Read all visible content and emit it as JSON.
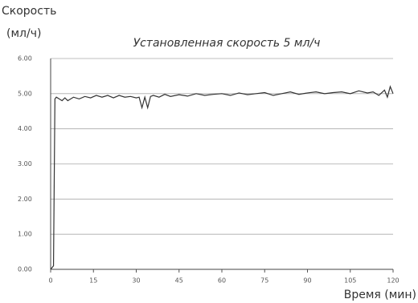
{
  "chart_data": {
    "type": "line",
    "title": "Установленная скорость 5 мл/ч",
    "y_label": [
      "Скорость",
      "(мл/ч)"
    ],
    "x_label": "Время (мин)",
    "x": [
      0,
      1,
      1.5,
      2,
      3,
      4,
      5,
      6,
      8,
      10,
      12,
      14,
      16,
      18,
      20,
      22,
      24,
      26,
      28,
      30,
      31,
      32,
      33,
      34,
      35,
      36,
      38,
      40,
      42,
      45,
      48,
      51,
      54,
      57,
      60,
      63,
      66,
      69,
      72,
      75,
      78,
      81,
      84,
      87,
      90,
      93,
      96,
      99,
      102,
      105,
      108,
      111,
      113,
      115,
      117,
      118,
      119,
      120
    ],
    "values": [
      0,
      0.1,
      4.85,
      4.9,
      4.85,
      4.8,
      4.88,
      4.8,
      4.9,
      4.85,
      4.92,
      4.88,
      4.95,
      4.9,
      4.95,
      4.88,
      4.95,
      4.9,
      4.92,
      4.88,
      4.9,
      4.6,
      4.9,
      4.6,
      4.92,
      4.95,
      4.9,
      4.98,
      4.92,
      4.97,
      4.93,
      5.0,
      4.95,
      4.98,
      5.0,
      4.95,
      5.02,
      4.97,
      5.0,
      5.03,
      4.95,
      5.0,
      5.05,
      4.98,
      5.02,
      5.05,
      5.0,
      5.03,
      5.05,
      5.0,
      5.08,
      5.02,
      5.05,
      4.95,
      5.1,
      4.9,
      5.2,
      5.0
    ],
    "color": "#333333",
    "xlim": [
      0,
      120
    ],
    "xticks": [
      0,
      15,
      30,
      45,
      60,
      75,
      90,
      105,
      120
    ],
    "ylim": [
      0,
      6
    ],
    "yticks": [
      {
        "value": 0,
        "label": "0.00"
      },
      {
        "value": 1,
        "label": "1.00"
      },
      {
        "value": 2,
        "label": "2.00"
      },
      {
        "value": 3,
        "label": "3.00"
      },
      {
        "value": 4,
        "label": "4.00"
      },
      {
        "value": 5,
        "label": "5.00"
      },
      {
        "value": 6,
        "label": "6.00"
      }
    ],
    "grid": true
  }
}
